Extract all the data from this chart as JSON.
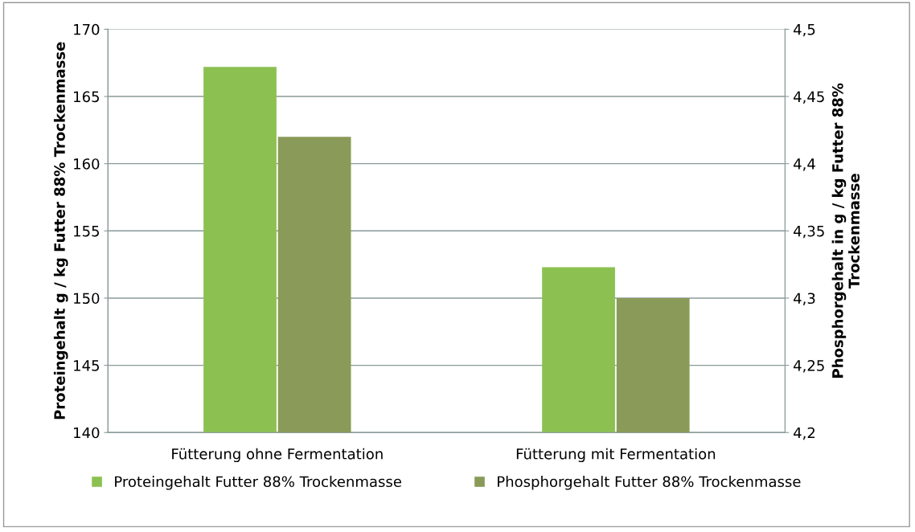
{
  "chart_data": {
    "type": "bar",
    "categories": [
      "Fütterung ohne Fermentation",
      "Fütterung mit Fermentation"
    ],
    "series": [
      {
        "name": "Proteingehalt Futter 88% Trockenmasse",
        "color": "#8cc152",
        "values": [
          167.2,
          152.3
        ]
      },
      {
        "name": "Phosphorgehalt Futter 88% Trockenmasse",
        "color": "#8a9a58",
        "values": [
          4.42,
          4.3
        ],
        "axis": "y2"
      }
    ],
    "ylabel": "Proteingehalt g / kg Futter 88% Trockenmasse",
    "y2label": "Phosphorgehalt in g / kg Futter 88%\nTrockenmasse",
    "ylim": [
      140,
      170
    ],
    "yticks": [
      140,
      145,
      150,
      155,
      160,
      165,
      170
    ],
    "y2lim": [
      4.2,
      4.5
    ],
    "y2ticks": [
      {
        "value": 4.2,
        "label": "4,2"
      },
      {
        "value": 4.25,
        "label": "4,25"
      },
      {
        "value": 4.3,
        "label": "4,3"
      },
      {
        "value": 4.35,
        "label": "4,35"
      },
      {
        "value": 4.4,
        "label": "4,4"
      },
      {
        "value": 4.45,
        "label": "4,45"
      },
      {
        "value": 4.5,
        "label": "4,5"
      }
    ],
    "grid": "y",
    "legend": "bottom"
  }
}
